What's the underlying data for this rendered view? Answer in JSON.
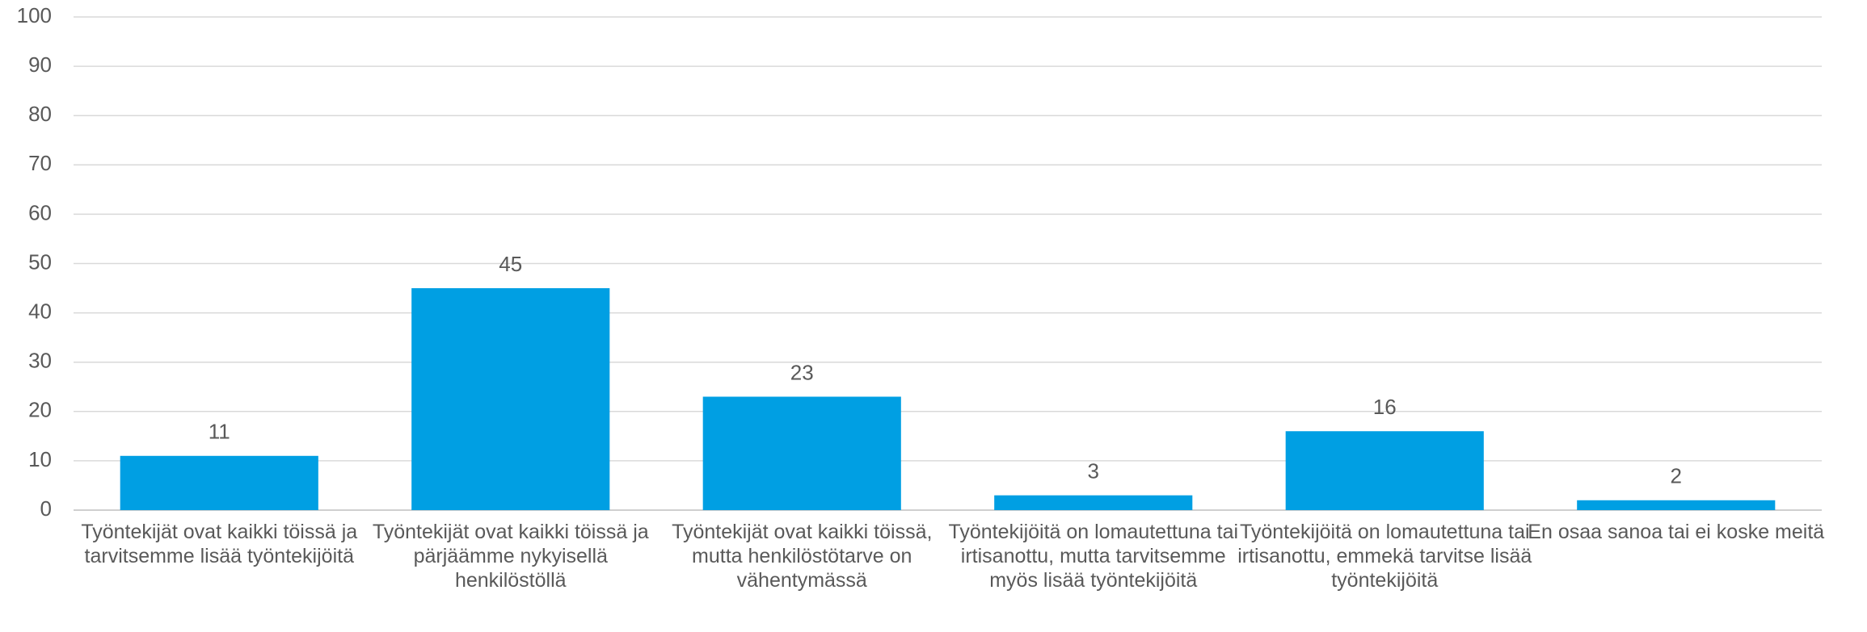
{
  "chart_data": {
    "type": "bar",
    "categories": [
      "Työntekijät ovat kaikki töissä ja tarvitsemme lisää työntekijöitä",
      "Työntekijät ovat kaikki töissä ja pärjäämme nykyisellä henkilöstöllä",
      "Työntekijät ovat kaikki töissä, mutta henkilöstötarve on vähentymässä",
      "Työntekijöitä on lomautettuna tai irtisanottu, mutta tarvitsemme myös lisää työntekijöitä",
      "Työntekijöitä on lomautettuna tai irtisanottu, emmekä tarvitse lisää työntekijöitä",
      "En osaa sanoa tai ei koske meitä"
    ],
    "values": [
      11,
      45,
      23,
      3,
      16,
      2
    ],
    "color": "#009fe3",
    "ylim": [
      0,
      100
    ],
    "yticks": [
      0,
      10,
      20,
      30,
      40,
      50,
      60,
      70,
      80,
      90,
      100
    ],
    "grid": true
  }
}
